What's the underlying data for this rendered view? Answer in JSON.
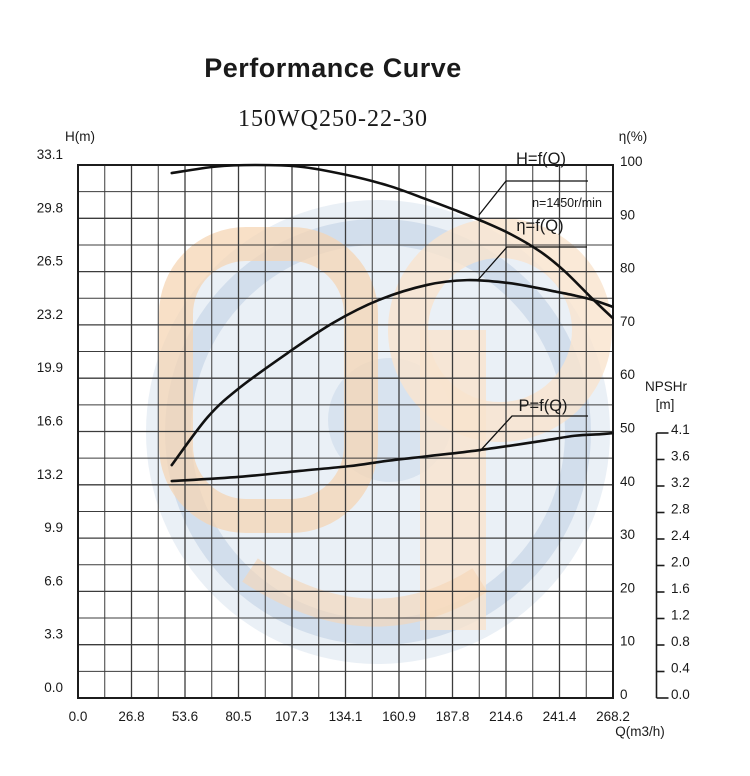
{
  "chart_data": {
    "type": "line",
    "title": "Performance Curve",
    "subtitle": "150WQ250-22-30",
    "annotation": "n=1450r/min",
    "grid": {
      "major_divisions": 10,
      "minor_per_major": 2,
      "visible": true
    },
    "axes": {
      "left": {
        "title": "H(m)",
        "range": [
          0,
          33.1
        ],
        "ticks": [
          "33.1",
          "29.8",
          "26.5",
          "23.2",
          "19.9",
          "16.6",
          "13.2",
          "9.9",
          "6.6",
          "3.3",
          "0.0"
        ]
      },
      "right": {
        "title": "η(%)",
        "range": [
          0,
          100
        ],
        "ticks": [
          "100",
          "90",
          "80",
          "70",
          "60",
          "50",
          "40",
          "30",
          "20",
          "10",
          "0"
        ]
      },
      "npshr": {
        "title": "NPSHr",
        "unit": "[m]",
        "range": [
          0,
          4.1
        ],
        "ticks": [
          "4.1",
          "3.6",
          "3.2",
          "2.8",
          "2.4",
          "2.0",
          "1.6",
          "1.2",
          "0.8",
          "0.4",
          "0.0"
        ]
      },
      "x": {
        "title": "Q(m3/h)",
        "range": [
          0,
          268.2
        ],
        "ticks": [
          "0.0",
          "26.8",
          "53.6",
          "80.5",
          "107.3",
          "134.1",
          "160.9",
          "187.8",
          "214.6",
          "241.4",
          "268.2"
        ]
      }
    },
    "series": [
      {
        "name": "H=f(Q)",
        "axis": "left",
        "points": [
          [
            47,
            32.6
          ],
          [
            69,
            33.0
          ],
          [
            89,
            33.1
          ],
          [
            111,
            33.0
          ],
          [
            134,
            32.5
          ],
          [
            156,
            31.8
          ],
          [
            174,
            31.0
          ],
          [
            189,
            30.3
          ],
          [
            201,
            29.7
          ],
          [
            217,
            28.8
          ],
          [
            232,
            27.7
          ],
          [
            244,
            26.5
          ],
          [
            257,
            24.9
          ],
          [
            268,
            23.6
          ]
        ]
      },
      {
        "name": "η=f(Q)",
        "axis": "right",
        "points": [
          [
            47,
            43.7
          ],
          [
            65,
            52.7
          ],
          [
            81,
            58.2
          ],
          [
            105,
            64.7
          ],
          [
            128,
            70.4
          ],
          [
            151,
            74.7
          ],
          [
            175,
            77.5
          ],
          [
            195,
            78.4
          ],
          [
            215,
            77.9
          ],
          [
            228,
            77.1
          ],
          [
            240,
            76.2
          ],
          [
            248,
            75.6
          ],
          [
            258,
            74.7
          ],
          [
            268,
            73.4
          ]
        ]
      },
      {
        "name": "P=f(Q)",
        "axis": "right",
        "points": [
          [
            47,
            40.7
          ],
          [
            81,
            41.5
          ],
          [
            111,
            42.6
          ],
          [
            136,
            43.5
          ],
          [
            155,
            44.5
          ],
          [
            176,
            45.4
          ],
          [
            201,
            46.5
          ],
          [
            232,
            48.2
          ],
          [
            249,
            49.2
          ],
          [
            262,
            49.5
          ],
          [
            268,
            49.7
          ]
        ]
      }
    ]
  },
  "colors": {
    "curve": "#111111",
    "grid_line": "#3c3c3c",
    "grid_border": "#1c1c1c",
    "text": "#1a1a1a",
    "watermark_blue": "#cfdceb",
    "watermark_blue_ring": "#bdcfe3",
    "watermark_orange": "#f3cba2",
    "watermark_orange_light": "#f8ddc2"
  }
}
